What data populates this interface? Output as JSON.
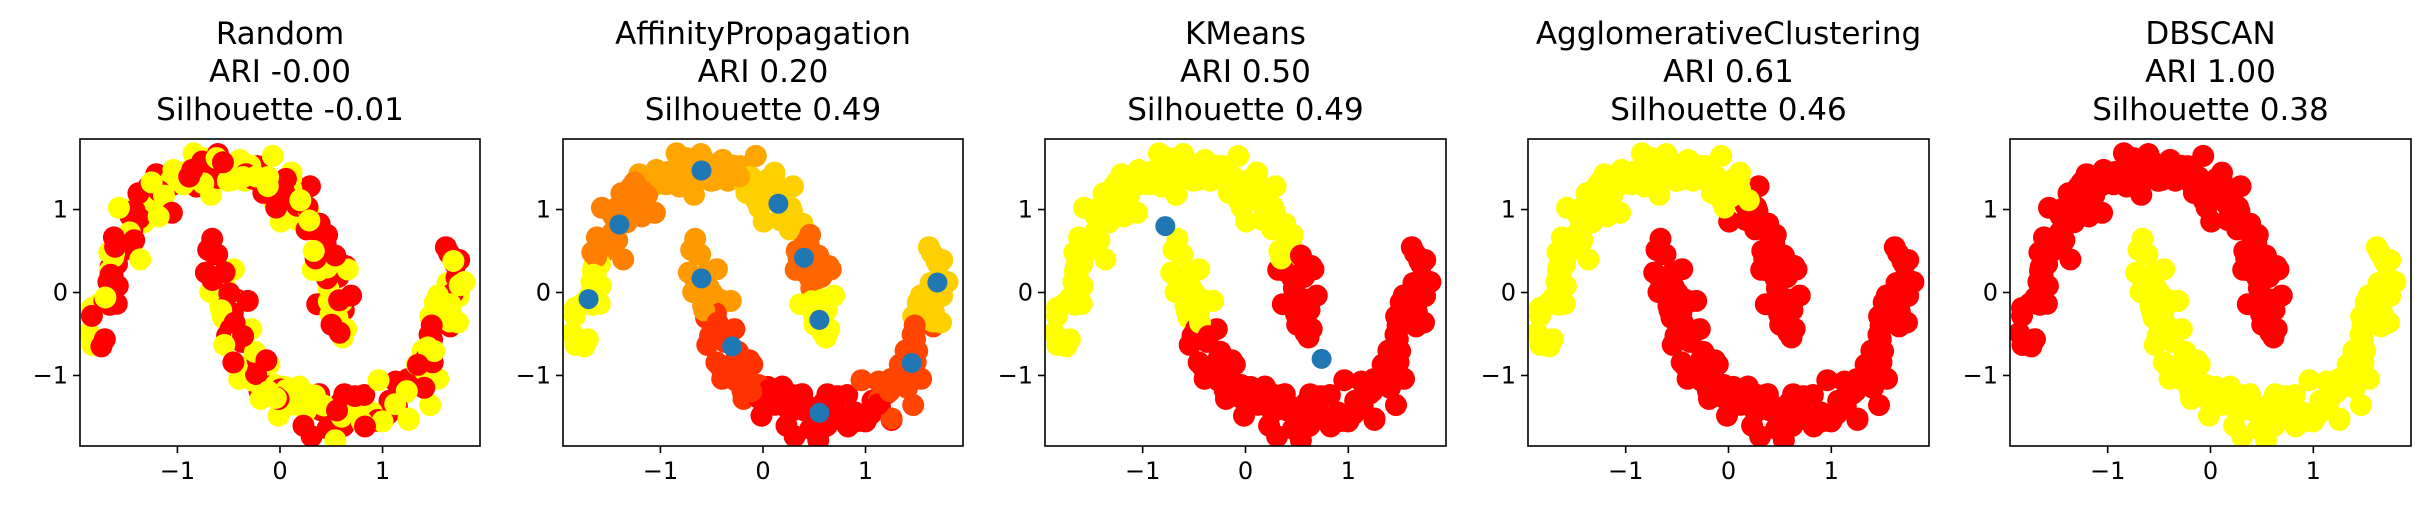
{
  "figure_title": "",
  "colors": {
    "red": "#ff0000",
    "yellow": "#ffff00",
    "orange_light": "#ffa500",
    "orange_dark": "#ff6600",
    "red_orange": "#ff3300",
    "center": "#1f77b4"
  },
  "chart_data": [
    {
      "type": "scatter",
      "title": [
        "Random",
        "ARI -0.00",
        "Silhouette -0.01"
      ],
      "xlabel": "",
      "ylabel": "",
      "xlim": [
        -1.95,
        1.95
      ],
      "ylim": [
        -1.85,
        1.85
      ],
      "xticks": [
        -1,
        0,
        1
      ],
      "yticks": [
        -1,
        0,
        1
      ],
      "xtick_labels": [
        "−1",
        "0",
        "1"
      ],
      "ytick_labels": [
        "−1",
        "0",
        "1"
      ],
      "coloring": "random",
      "centers": []
    },
    {
      "type": "scatter",
      "title": [
        "AffinityPropagation",
        "ARI 0.20",
        "Silhouette 0.49"
      ],
      "xlabel": "",
      "ylabel": "",
      "xlim": [
        -1.95,
        1.95
      ],
      "ylim": [
        -1.85,
        1.85
      ],
      "xticks": [
        -1,
        0,
        1
      ],
      "yticks": [
        -1,
        0,
        1
      ],
      "xtick_labels": [
        "−1",
        "0",
        "1"
      ],
      "ytick_labels": [
        "−1",
        "0",
        "1"
      ],
      "coloring": "nearest_center",
      "cluster_colors": [
        "#ffff00",
        "#ff8000",
        "#ffa500",
        "#ff9900",
        "#ffd000",
        "#ff6600",
        "#ffff00",
        "#ff3300",
        "#ff0000",
        "#ff4500",
        "#ffd000"
      ],
      "centers": [
        [
          -1.7,
          -0.08
        ],
        [
          -1.4,
          0.82
        ],
        [
          -0.6,
          1.47
        ],
        [
          -0.6,
          0.17
        ],
        [
          0.15,
          1.07
        ],
        [
          0.4,
          0.42
        ],
        [
          0.55,
          -0.33
        ],
        [
          -0.3,
          -0.65
        ],
        [
          0.55,
          -1.45
        ],
        [
          1.45,
          -0.85
        ],
        [
          1.7,
          0.12
        ]
      ]
    },
    {
      "type": "scatter",
      "title": [
        "KMeans",
        "ARI 0.50",
        "Silhouette 0.49"
      ],
      "xlabel": "",
      "ylabel": "",
      "xlim": [
        -1.95,
        1.95
      ],
      "ylim": [
        -1.85,
        1.85
      ],
      "xticks": [
        -1,
        0,
        1
      ],
      "yticks": [
        -1,
        0,
        1
      ],
      "xtick_labels": [
        "−1",
        "0",
        "1"
      ],
      "ytick_labels": [
        "−1",
        "0",
        "1"
      ],
      "coloring": "nearest_center",
      "cluster_colors": [
        "#ffff00",
        "#ff0000"
      ],
      "centers": [
        [
          -0.78,
          0.8
        ],
        [
          0.74,
          -0.8
        ]
      ]
    },
    {
      "type": "scatter",
      "title": [
        "AgglomerativeClustering",
        "ARI 0.61",
        "Silhouette 0.46"
      ],
      "xlabel": "",
      "ylabel": "",
      "xlim": [
        -1.95,
        1.95
      ],
      "ylim": [
        -1.85,
        1.85
      ],
      "xticks": [
        -1,
        0,
        1
      ],
      "yticks": [
        -1,
        0,
        1
      ],
      "xtick_labels": [
        "−1",
        "0",
        "1"
      ],
      "ytick_labels": [
        "−1",
        "0",
        "1"
      ],
      "coloring": "agglomerative",
      "centers": []
    },
    {
      "type": "scatter",
      "title": [
        "DBSCAN",
        "ARI 1.00",
        "Silhouette 0.38"
      ],
      "xlabel": "",
      "ylabel": "",
      "xlim": [
        -1.95,
        1.95
      ],
      "ylim": [
        -1.85,
        1.85
      ],
      "xticks": [
        -1,
        0,
        1
      ],
      "yticks": [
        -1,
        0,
        1
      ],
      "xtick_labels": [
        "−1",
        "0",
        "1"
      ],
      "ytick_labels": [
        "−1",
        "0",
        "1"
      ],
      "coloring": "by_moon",
      "moon_colors": [
        "#ff0000",
        "#ffff00"
      ],
      "centers": []
    }
  ]
}
